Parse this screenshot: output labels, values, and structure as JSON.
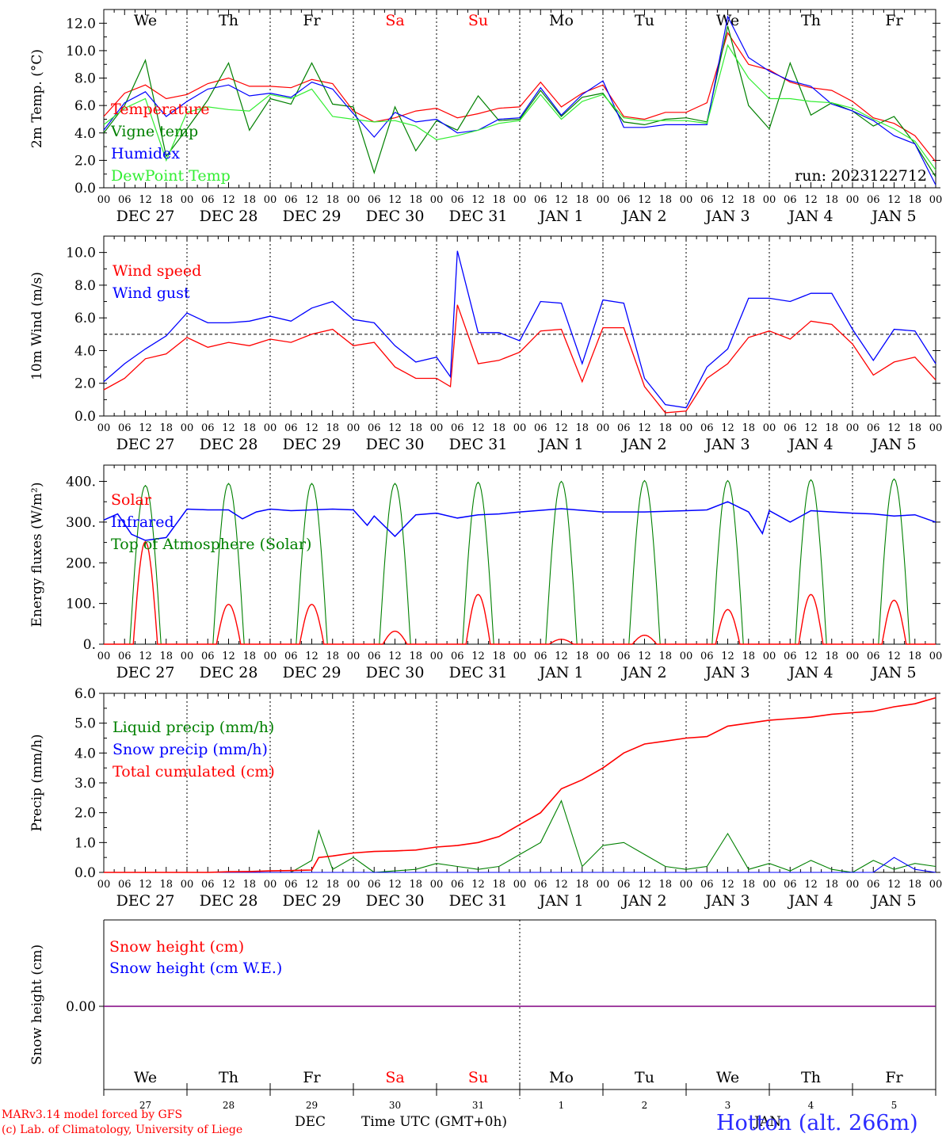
{
  "run_label": "run: 2023122712",
  "footer": {
    "credit_line1": "MARv3.14 model forced by GFS",
    "credit_line2": "(c) Lab. of Climatology, University of Liege",
    "month_label": "DEC",
    "month_label2": "JAN",
    "xaxis_title": "Time UTC (GMT+0h)",
    "station": "Hotton (alt. 266m)"
  },
  "colors": {
    "red": "#ff0000",
    "green": "#008000",
    "blue": "#0000ff",
    "lightgreen": "#33ee33",
    "purple": "#800080",
    "weekend": "#ff0000",
    "weekday": "#000000"
  },
  "days": {
    "weekday_labels": [
      "We",
      "Th",
      "Fr",
      "Sa",
      "Su",
      "Mo",
      "Tu",
      "We",
      "Th",
      "Fr"
    ],
    "weekend": [
      false,
      false,
      false,
      true,
      true,
      false,
      false,
      false,
      false,
      false
    ],
    "date_labels": [
      "DEC 27",
      "DEC 28",
      "DEC 29",
      "DEC 30",
      "DEC 31",
      "JAN  1",
      "JAN  2",
      "JAN  3",
      "JAN  4",
      "JAN  5"
    ],
    "day_numbers": [
      "27",
      "28",
      "29",
      "30",
      "31",
      "1",
      "2",
      "3",
      "4",
      "5"
    ],
    "hour_ticks": [
      "00",
      "06",
      "12",
      "18"
    ],
    "last_tick": "00"
  },
  "chart_data": [
    {
      "type": "line",
      "ylabel": "2m Temp. (°C)",
      "ylim": [
        0,
        13
      ],
      "yticks": [
        0,
        2,
        4,
        6,
        8,
        10,
        12
      ],
      "ytick_labels": [
        "0.0",
        "2.0",
        "4.0",
        "6.0",
        "8.0",
        "10.0",
        "12.0"
      ],
      "x_hours": [
        0,
        6,
        12,
        18,
        24,
        30,
        36,
        42,
        48,
        54,
        60,
        66,
        72,
        78,
        84,
        90,
        96,
        102,
        108,
        114,
        120,
        126,
        132,
        138,
        144,
        150,
        156,
        162,
        168,
        174,
        180,
        186,
        192,
        198,
        204,
        210,
        216,
        222,
        228,
        234,
        240
      ],
      "series": [
        {
          "name": "Temperature",
          "color": "red",
          "values": [
            5.2,
            6.9,
            7.5,
            6.5,
            6.8,
            7.6,
            8.0,
            7.4,
            7.4,
            7.3,
            7.9,
            7.6,
            5.6,
            4.8,
            5.1,
            5.6,
            5.8,
            5.1,
            5.4,
            5.8,
            5.9,
            7.7,
            5.9,
            6.9,
            7.5,
            5.2,
            5.0,
            5.5,
            5.5,
            6.2,
            11.3,
            9.0,
            8.6,
            7.7,
            7.3,
            7.1,
            6.3,
            5.1,
            4.7,
            3.8,
            1.9
          ]
        },
        {
          "name": "Vigne temp",
          "color": "green",
          "values": [
            4.0,
            6.0,
            9.3,
            2.3,
            4.3,
            6.4,
            9.1,
            4.2,
            6.5,
            6.1,
            9.1,
            6.1,
            5.9,
            1.1,
            5.9,
            2.7,
            4.9,
            4.2,
            6.7,
            4.9,
            5.0,
            7.1,
            5.2,
            6.6,
            6.9,
            4.8,
            4.6,
            5.0,
            5.1,
            4.8,
            11.8,
            6.0,
            4.3,
            9.1,
            5.3,
            6.2,
            5.6,
            4.5,
            5.2,
            3.2,
            0.8
          ]
        },
        {
          "name": "Humidex",
          "color": "blue",
          "values": [
            4.2,
            6.2,
            7.0,
            5.2,
            6.3,
            7.2,
            7.5,
            6.7,
            6.9,
            6.6,
            7.7,
            7.2,
            5.4,
            3.7,
            5.5,
            4.8,
            5.0,
            4.0,
            4.2,
            5.0,
            5.1,
            7.3,
            5.3,
            6.8,
            7.8,
            4.4,
            4.4,
            4.6,
            4.6,
            4.6,
            12.5,
            9.5,
            8.5,
            7.8,
            7.4,
            6.1,
            5.6,
            4.9,
            3.8,
            3.2,
            0.2
          ]
        },
        {
          "name": "DewPoint Temp",
          "color": "lightgreen",
          "values": [
            4.6,
            5.8,
            6.5,
            2.0,
            5.5,
            5.9,
            5.7,
            5.6,
            6.8,
            6.5,
            7.2,
            5.2,
            5.0,
            4.8,
            4.9,
            4.5,
            3.5,
            3.8,
            4.2,
            4.7,
            4.9,
            6.8,
            5.0,
            6.3,
            6.8,
            5.1,
            4.9,
            4.9,
            4.9,
            4.7,
            10.4,
            8.0,
            6.5,
            6.5,
            6.3,
            6.2,
            5.8,
            5.0,
            4.3,
            3.4,
            1.3
          ]
        }
      ]
    },
    {
      "type": "line",
      "ylabel": "10m Wind (m/s)",
      "ylim": [
        0,
        11
      ],
      "yticks": [
        0,
        2,
        4,
        6,
        8,
        10
      ],
      "ytick_labels": [
        "0.0",
        "2.0",
        "4.0",
        "6.0",
        "8.0",
        "10.0"
      ],
      "reference_line": 5,
      "x_hours": [
        0,
        6,
        12,
        18,
        24,
        30,
        36,
        42,
        48,
        54,
        60,
        66,
        72,
        78,
        84,
        90,
        96,
        100,
        102,
        108,
        114,
        120,
        126,
        132,
        138,
        144,
        150,
        156,
        162,
        168,
        174,
        180,
        186,
        192,
        198,
        204,
        210,
        216,
        222,
        228,
        234,
        240
      ],
      "series": [
        {
          "name": "Wind speed",
          "color": "red",
          "values": [
            1.6,
            2.3,
            3.5,
            3.8,
            4.8,
            4.2,
            4.5,
            4.3,
            4.7,
            4.5,
            5.0,
            5.3,
            4.3,
            4.5,
            3.0,
            2.3,
            2.3,
            1.8,
            6.8,
            3.2,
            3.4,
            3.9,
            5.2,
            5.3,
            2.1,
            5.4,
            5.4,
            1.8,
            0.2,
            0.3,
            2.3,
            3.2,
            4.8,
            5.2,
            4.7,
            5.8,
            5.6,
            4.4,
            2.5,
            3.3,
            3.6,
            2.2
          ]
        },
        {
          "name": "Wind gust",
          "color": "blue",
          "values": [
            2.1,
            3.2,
            4.1,
            4.9,
            6.3,
            5.7,
            5.7,
            5.8,
            6.1,
            5.8,
            6.6,
            7.0,
            5.9,
            5.7,
            4.3,
            3.3,
            3.6,
            2.4,
            10.1,
            5.1,
            5.1,
            4.6,
            7.0,
            6.9,
            3.2,
            7.1,
            6.9,
            2.3,
            0.7,
            0.5,
            3.0,
            4.1,
            7.2,
            7.2,
            7.0,
            7.5,
            7.5,
            5.3,
            3.4,
            5.3,
            5.2,
            3.2
          ]
        }
      ]
    },
    {
      "type": "line",
      "ylabel": "Energy fluxes (W/m²)",
      "ylim": [
        0,
        440
      ],
      "yticks": [
        0,
        100,
        200,
        300,
        400
      ],
      "ytick_labels": [
        "0.",
        "100.",
        "200.",
        "300.",
        "400."
      ],
      "solar_peaks": [
        252,
        98,
        98,
        32,
        122,
        12,
        22,
        85,
        122,
        108
      ],
      "toa_peaks": [
        390,
        395,
        395,
        395,
        398,
        400,
        402,
        402,
        404,
        406
      ],
      "series": [
        {
          "name": "Solar",
          "color": "red"
        },
        {
          "name": "Infrared",
          "color": "blue",
          "x_hours": [
            0,
            4,
            8,
            12,
            18,
            24,
            30,
            36,
            40,
            44,
            48,
            54,
            60,
            66,
            72,
            76,
            78,
            84,
            90,
            96,
            102,
            108,
            114,
            120,
            132,
            144,
            156,
            168,
            174,
            180,
            186,
            190,
            192,
            198,
            204,
            210,
            216,
            222,
            228,
            234,
            240
          ],
          "values": [
            305,
            320,
            270,
            255,
            262,
            332,
            330,
            330,
            308,
            325,
            332,
            328,
            330,
            332,
            330,
            292,
            315,
            265,
            318,
            322,
            310,
            318,
            320,
            325,
            333,
            325,
            325,
            328,
            330,
            350,
            325,
            272,
            328,
            300,
            328,
            325,
            322,
            320,
            315,
            318,
            300
          ]
        },
        {
          "name": "Top of Atmosphere (Solar)",
          "color": "green"
        }
      ]
    },
    {
      "type": "line",
      "ylabel": "Precip (mm/h)",
      "ylim": [
        0,
        6
      ],
      "yticks": [
        0,
        1,
        2,
        3,
        4,
        5,
        6
      ],
      "ytick_labels": [
        "0.0",
        "1.0",
        "2.0",
        "3.0",
        "4.0",
        "5.0",
        "6.0"
      ],
      "x_hours": [
        0,
        6,
        12,
        18,
        24,
        30,
        36,
        42,
        48,
        54,
        60,
        62,
        66,
        72,
        78,
        84,
        90,
        96,
        102,
        108,
        114,
        120,
        126,
        132,
        138,
        144,
        150,
        156,
        162,
        168,
        174,
        180,
        186,
        192,
        198,
        204,
        210,
        216,
        222,
        228,
        234,
        240
      ],
      "series": [
        {
          "name": "Liquid precip (mm/h)",
          "color": "green",
          "values": [
            0,
            0,
            0,
            0,
            0,
            0,
            0,
            0,
            0,
            0,
            0.4,
            1.4,
            0.1,
            0.5,
            0,
            0.05,
            0.1,
            0.3,
            0.2,
            0.1,
            0.2,
            0.6,
            1.0,
            2.4,
            0.2,
            0.9,
            1.0,
            0.6,
            0.2,
            0.1,
            0.2,
            1.3,
            0.1,
            0.3,
            0.05,
            0.4,
            0.1,
            0,
            0.4,
            0.1,
            0.3,
            0.2
          ]
        },
        {
          "name": "Snow precip (mm/h)",
          "color": "blue",
          "values": [
            0,
            0,
            0,
            0,
            0,
            0,
            0,
            0,
            0,
            0,
            0,
            0,
            0,
            0,
            0,
            0,
            0,
            0,
            0,
            0,
            0,
            0,
            0,
            0,
            0,
            0,
            0,
            0,
            0,
            0,
            0,
            0,
            0,
            0,
            0,
            0,
            0,
            0,
            0,
            0.5,
            0.1,
            0
          ]
        },
        {
          "name": "Total cumulated (cm)",
          "color": "red",
          "values": [
            0,
            0,
            0,
            0,
            0,
            0,
            0.02,
            0.03,
            0.05,
            0.06,
            0.08,
            0.5,
            0.55,
            0.65,
            0.7,
            0.72,
            0.75,
            0.85,
            0.9,
            1.0,
            1.2,
            1.6,
            2.0,
            2.8,
            3.1,
            3.5,
            4.0,
            4.3,
            4.4,
            4.5,
            4.55,
            4.9,
            5.0,
            5.1,
            5.15,
            5.2,
            5.3,
            5.35,
            5.4,
            5.55,
            5.65,
            5.85
          ]
        }
      ]
    },
    {
      "type": "line",
      "ylabel": "Snow height (cm)",
      "ytick_labels": [
        "0.00"
      ],
      "series": [
        {
          "name": "Snow height (cm)",
          "color": "red",
          "values": [
            0,
            0
          ]
        },
        {
          "name": "Snow height (cm W.E.)",
          "color": "blue",
          "values": [
            0,
            0
          ]
        }
      ]
    }
  ]
}
